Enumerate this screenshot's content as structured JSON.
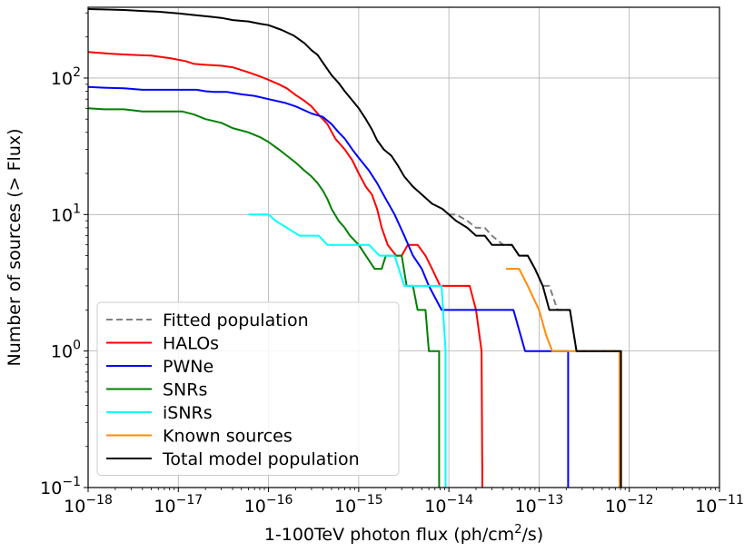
{
  "chart_data": {
    "type": "line",
    "title": "",
    "xlabel": "1-100TeV photon flux (ph/cm²/s)",
    "ylabel": "Number of sources (> Flux)",
    "xscale": "log",
    "yscale": "log",
    "xlim": [
      1e-18,
      1e-11
    ],
    "ylim": [
      0.1,
      330
    ],
    "grid": true,
    "legend_position": "lower-left",
    "x_ticks": [
      {
        "value": 1e-18,
        "base": "10",
        "exp": "−18"
      },
      {
        "value": 1e-17,
        "base": "10",
        "exp": "−17"
      },
      {
        "value": 1e-16,
        "base": "10",
        "exp": "−16"
      },
      {
        "value": 1e-15,
        "base": "10",
        "exp": "−15"
      },
      {
        "value": 1e-14,
        "base": "10",
        "exp": "−14"
      },
      {
        "value": 1e-13,
        "base": "10",
        "exp": "−13"
      },
      {
        "value": 1e-12,
        "base": "10",
        "exp": "−12"
      },
      {
        "value": 1e-11,
        "base": "10",
        "exp": "−11"
      }
    ],
    "y_ticks": [
      {
        "value": 0.1,
        "base": "10",
        "exp": "−1"
      },
      {
        "value": 1,
        "base": "10",
        "exp": "0"
      },
      {
        "value": 10,
        "base": "10",
        "exp": "1"
      },
      {
        "value": 100,
        "base": "10",
        "exp": "2"
      }
    ],
    "series": [
      {
        "name": "Fitted population",
        "color": "#808080",
        "dashed": true,
        "points": [
          [
            1e-14,
            10
          ],
          [
            1.2e-14,
            10
          ],
          [
            1.6e-14,
            9
          ],
          [
            2e-14,
            8
          ],
          [
            2.5e-14,
            8
          ],
          [
            3e-14,
            7
          ],
          [
            4e-14,
            6
          ],
          [
            5e-14,
            6
          ],
          [
            6e-14,
            5
          ],
          [
            7.5e-14,
            5
          ],
          [
            9e-14,
            4
          ],
          [
            1.1e-13,
            3
          ],
          [
            1.3e-13,
            3
          ],
          [
            1.6e-13,
            2
          ],
          [
            2.2e-13,
            2
          ],
          [
            2.6e-13,
            1
          ],
          [
            7.9e-13,
            1
          ],
          [
            7.9e-13,
            0.1
          ]
        ]
      },
      {
        "name": "HALOs",
        "color": "#ff0000",
        "dashed": false,
        "points": [
          [
            1e-18,
            155
          ],
          [
            1.5e-18,
            152
          ],
          [
            2e-18,
            150
          ],
          [
            3e-18,
            148
          ],
          [
            5e-18,
            146
          ],
          [
            8e-18,
            140
          ],
          [
            1.2e-17,
            133
          ],
          [
            1.5e-17,
            127
          ],
          [
            2e-17,
            125
          ],
          [
            3e-17,
            123
          ],
          [
            4e-17,
            120
          ],
          [
            6e-17,
            110
          ],
          [
            8e-17,
            103
          ],
          [
            1e-16,
            97
          ],
          [
            1.3e-16,
            90
          ],
          [
            1.6e-16,
            84
          ],
          [
            2e-16,
            75
          ],
          [
            2.5e-16,
            68
          ],
          [
            3e-16,
            62
          ],
          [
            3.5e-16,
            55
          ],
          [
            4.5e-16,
            46
          ],
          [
            5.5e-16,
            36
          ],
          [
            7e-16,
            30
          ],
          [
            8.5e-16,
            25
          ],
          [
            1e-15,
            20
          ],
          [
            1.2e-15,
            16
          ],
          [
            1.4e-15,
            14
          ],
          [
            1.6e-15,
            11
          ],
          [
            1.8e-15,
            8
          ],
          [
            2.1e-15,
            6
          ],
          [
            2.6e-15,
            5
          ],
          [
            3e-15,
            5
          ],
          [
            3.5e-15,
            6
          ],
          [
            4.5e-15,
            6
          ],
          [
            5.5e-15,
            5
          ],
          [
            6.5e-15,
            4
          ],
          [
            8e-15,
            3
          ],
          [
            1.7e-14,
            3
          ],
          [
            2e-14,
            2
          ],
          [
            2.3e-14,
            1
          ],
          [
            2.35e-14,
            0.1
          ]
        ]
      },
      {
        "name": "PWNe",
        "color": "#0000ff",
        "dashed": false,
        "points": [
          [
            1e-18,
            86
          ],
          [
            1.5e-18,
            85
          ],
          [
            2.5e-18,
            84
          ],
          [
            4e-18,
            82
          ],
          [
            1.6e-17,
            82
          ],
          [
            2e-17,
            80
          ],
          [
            2.5e-17,
            79
          ],
          [
            3.5e-17,
            79
          ],
          [
            5e-17,
            76
          ],
          [
            7e-17,
            74
          ],
          [
            1e-16,
            70
          ],
          [
            1.5e-16,
            66
          ],
          [
            2e-16,
            62
          ],
          [
            2.5e-16,
            58
          ],
          [
            3e-16,
            55
          ],
          [
            4e-16,
            52
          ],
          [
            5e-16,
            46
          ],
          [
            6e-16,
            40
          ],
          [
            7e-16,
            36
          ],
          [
            8.5e-16,
            30
          ],
          [
            1e-15,
            26
          ],
          [
            1.3e-15,
            21
          ],
          [
            1.6e-15,
            17
          ],
          [
            2e-15,
            13
          ],
          [
            2.5e-15,
            10
          ],
          [
            3.2e-15,
            7
          ],
          [
            4e-15,
            5
          ],
          [
            5e-15,
            4
          ],
          [
            6e-15,
            3
          ],
          [
            8.3e-15,
            2
          ],
          [
            5.2e-14,
            2
          ],
          [
            7e-14,
            1
          ],
          [
            2.1e-13,
            1
          ],
          [
            2.1e-13,
            0.1
          ]
        ]
      },
      {
        "name": "SNRs",
        "color": "#008000",
        "dashed": false,
        "points": [
          [
            1e-18,
            60
          ],
          [
            1.5e-18,
            59
          ],
          [
            2.5e-18,
            59
          ],
          [
            4e-18,
            57
          ],
          [
            7e-18,
            57
          ],
          [
            1.1e-17,
            57
          ],
          [
            1.5e-17,
            54
          ],
          [
            2e-17,
            50
          ],
          [
            3e-17,
            47
          ],
          [
            4e-17,
            43
          ],
          [
            6e-17,
            40
          ],
          [
            8e-17,
            37
          ],
          [
            1e-16,
            34
          ],
          [
            1.3e-16,
            30
          ],
          [
            1.6e-16,
            27
          ],
          [
            2e-16,
            24
          ],
          [
            2.5e-16,
            21
          ],
          [
            3e-16,
            19
          ],
          [
            3.5e-16,
            17
          ],
          [
            4e-16,
            15
          ],
          [
            4.5e-16,
            13
          ],
          [
            5e-16,
            11
          ],
          [
            6e-16,
            9
          ],
          [
            7e-16,
            8
          ],
          [
            8e-16,
            7
          ],
          [
            1e-15,
            6
          ],
          [
            1.2e-15,
            5
          ],
          [
            1.5e-15,
            4
          ],
          [
            1.8e-15,
            4
          ],
          [
            2e-15,
            5
          ],
          [
            3e-15,
            5
          ],
          [
            3.4e-15,
            3
          ],
          [
            4e-15,
            3
          ],
          [
            4.5e-15,
            2
          ],
          [
            5.5e-15,
            2
          ],
          [
            6e-15,
            1
          ],
          [
            7.8e-15,
            1
          ],
          [
            7.8e-15,
            0.1
          ]
        ]
      },
      {
        "name": "iSNRs",
        "color": "#00ffff",
        "dashed": false,
        "points": [
          [
            6e-17,
            10
          ],
          [
            1e-16,
            10
          ],
          [
            1.2e-16,
            9
          ],
          [
            1.6e-16,
            8
          ],
          [
            2.2e-16,
            7
          ],
          [
            3.6e-16,
            7
          ],
          [
            4.5e-16,
            6
          ],
          [
            1.3e-15,
            6
          ],
          [
            1.7e-15,
            5
          ],
          [
            2.5e-15,
            5
          ],
          [
            3.2e-15,
            3
          ],
          [
            8.3e-15,
            3
          ],
          [
            9.2e-15,
            1
          ],
          [
            9.2e-15,
            0.1
          ]
        ]
      },
      {
        "name": "Known sources",
        "color": "#ff8c00",
        "dashed": false,
        "points": [
          [
            4.3e-14,
            4
          ],
          [
            6e-14,
            4
          ],
          [
            7.5e-14,
            3
          ],
          [
            1e-13,
            2
          ],
          [
            1.2e-13,
            1.3
          ],
          [
            1.4e-13,
            1
          ],
          [
            7.8e-13,
            1
          ],
          [
            7.8e-13,
            0.1
          ]
        ]
      },
      {
        "name": "Total model population",
        "color": "#000000",
        "dashed": false,
        "points": [
          [
            1e-18,
            320
          ],
          [
            1.5e-18,
            318
          ],
          [
            2.5e-18,
            315
          ],
          [
            4e-18,
            310
          ],
          [
            6e-18,
            306
          ],
          [
            1e-17,
            298
          ],
          [
            1.6e-17,
            288
          ],
          [
            2.2e-17,
            282
          ],
          [
            3e-17,
            276
          ],
          [
            4e-17,
            266
          ],
          [
            6e-17,
            260
          ],
          [
            8e-17,
            250
          ],
          [
            1e-16,
            244
          ],
          [
            1.4e-16,
            225
          ],
          [
            1.9e-16,
            205
          ],
          [
            2.5e-16,
            180
          ],
          [
            3e-16,
            160
          ],
          [
            3.5e-16,
            148
          ],
          [
            4e-16,
            130
          ],
          [
            5e-16,
            105
          ],
          [
            6e-16,
            92
          ],
          [
            7e-16,
            80
          ],
          [
            8e-16,
            72
          ],
          [
            1e-15,
            60
          ],
          [
            1.2e-15,
            50
          ],
          [
            1.4e-15,
            42
          ],
          [
            1.6e-15,
            35
          ],
          [
            1.9e-15,
            30
          ],
          [
            2.3e-15,
            27
          ],
          [
            2.7e-15,
            23
          ],
          [
            3.2e-15,
            19
          ],
          [
            4e-15,
            16
          ],
          [
            5e-15,
            14
          ],
          [
            6.5e-15,
            12
          ],
          [
            8.5e-15,
            11
          ],
          [
            1e-14,
            10
          ],
          [
            1.2e-14,
            9
          ],
          [
            1.6e-14,
            8
          ],
          [
            2e-14,
            7
          ],
          [
            2.5e-14,
            7
          ],
          [
            3e-14,
            6
          ],
          [
            4e-14,
            6
          ],
          [
            5e-14,
            6
          ],
          [
            6e-14,
            5
          ],
          [
            7.5e-14,
            5
          ],
          [
            9e-14,
            4
          ],
          [
            1.1e-13,
            3
          ],
          [
            1.3e-13,
            2
          ],
          [
            2.2e-13,
            2
          ],
          [
            2.6e-13,
            1
          ],
          [
            8.1e-13,
            1
          ],
          [
            8.1e-13,
            0.1
          ]
        ]
      }
    ]
  }
}
